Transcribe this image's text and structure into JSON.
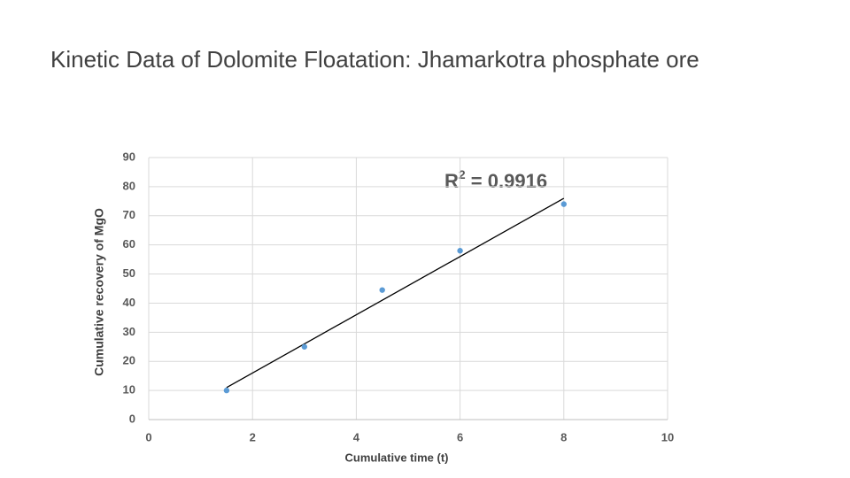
{
  "chart_data": {
    "type": "scatter",
    "title": "Kinetic Data of Dolomite Floatation: Jhamarkotra phosphate ore",
    "x_label": "Cumulative time (t)",
    "y_label": "Cumulative recovery of MgO",
    "annotation": [
      "R",
      "2",
      " = 0.9916"
    ],
    "series": [
      {
        "color": "#5b9bd5",
        "x": [
          1.5,
          3,
          4.5,
          6,
          8
        ],
        "values": [
          10,
          25,
          44.5,
          58,
          74
        ]
      }
    ],
    "trendline": {
      "color": "#000000",
      "x": [
        1.5,
        8
      ],
      "values": [
        11,
        76
      ]
    },
    "xlim": [
      0,
      10
    ],
    "ylim": [
      0,
      90
    ],
    "xticks": [
      0,
      2,
      4,
      6,
      8,
      10
    ],
    "yticks": [
      0,
      10,
      20,
      30,
      40,
      50,
      60,
      70,
      80,
      90
    ],
    "grid": true
  }
}
